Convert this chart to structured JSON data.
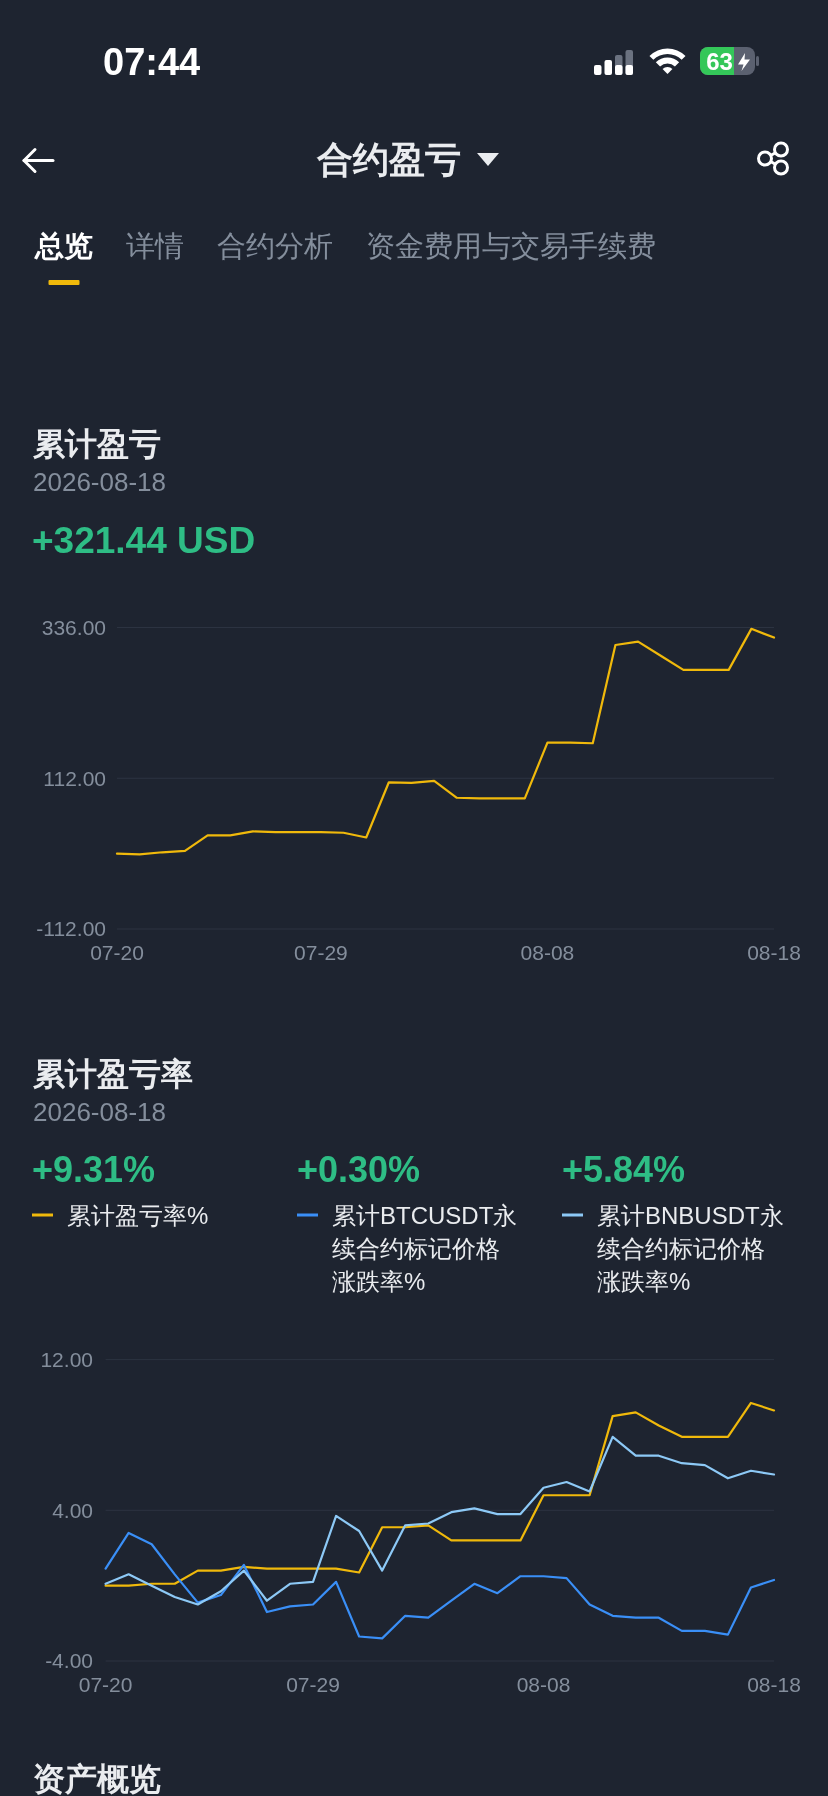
{
  "chart_data": [
    {
      "type": "other",
      "title": "合约盈亏",
      "annotations": [
        "07:44",
        "63",
        "总览",
        "详情",
        "合约分析",
        "资金费用与交易手续费"
      ]
    },
    {
      "type": "line",
      "title": "累计盈亏",
      "subtitle": "2026-08-18",
      "annotations": [
        "+321.44 USD"
      ],
      "x": [
        "2026-07-20",
        "2026-07-21",
        "2026-07-22",
        "2026-07-23",
        "2026-07-24",
        "2026-07-25",
        "2026-07-26",
        "2026-07-27",
        "2026-07-28",
        "2026-07-29",
        "2026-07-30",
        "2026-07-31",
        "2026-08-01",
        "2026-08-02",
        "2026-08-03",
        "2026-08-04",
        "2026-08-05",
        "2026-08-06",
        "2026-08-07",
        "2026-08-08",
        "2026-08-09",
        "2026-08-10",
        "2026-08-11",
        "2026-08-12",
        "2026-08-13",
        "2026-08-14",
        "2026-08-15",
        "2026-08-16",
        "2026-08-17",
        "2026-08-18"
      ],
      "xlim": [
        "2026-07-20",
        "2026-08-18"
      ],
      "xticks": [
        {
          "value": "2026-07-20",
          "label": "07-20"
        },
        {
          "value": "2026-07-29",
          "label": "07-29"
        },
        {
          "value": "2026-08-08",
          "label": "08-08"
        },
        {
          "value": "2026-08-18",
          "label": "08-18"
        }
      ],
      "ylim": [
        -112,
        336
      ],
      "yticks": [
        {
          "value": -112,
          "label": "-112.00"
        },
        {
          "value": 112,
          "label": "112.00"
        },
        {
          "value": 336,
          "label": "336.00"
        }
      ],
      "grid": "y",
      "series": [
        {
          "color": "#f0b90b",
          "values": [
            0,
            -1,
            2,
            4,
            27,
            27,
            33,
            32,
            32,
            32,
            31,
            24,
            106,
            105,
            108,
            83,
            82,
            82,
            82,
            165,
            165,
            164,
            310,
            315,
            294,
            273,
            273,
            273,
            334,
            321
          ]
        }
      ]
    },
    {
      "type": "line",
      "title": "累计盈亏率",
      "subtitle": "2026-08-18",
      "annotations": [
        "+9.31%",
        "+0.30%",
        "+5.84%"
      ],
      "legend": "top",
      "x": [
        "2026-07-20",
        "2026-07-21",
        "2026-07-22",
        "2026-07-23",
        "2026-07-24",
        "2026-07-25",
        "2026-07-26",
        "2026-07-27",
        "2026-07-28",
        "2026-07-29",
        "2026-07-30",
        "2026-07-31",
        "2026-08-01",
        "2026-08-02",
        "2026-08-03",
        "2026-08-04",
        "2026-08-05",
        "2026-08-06",
        "2026-08-07",
        "2026-08-08",
        "2026-08-09",
        "2026-08-10",
        "2026-08-11",
        "2026-08-12",
        "2026-08-13",
        "2026-08-14",
        "2026-08-15",
        "2026-08-16",
        "2026-08-17",
        "2026-08-18"
      ],
      "xlim": [
        "2026-07-20",
        "2026-08-18"
      ],
      "xticks": [
        {
          "value": "2026-07-20",
          "label": "07-20"
        },
        {
          "value": "2026-07-29",
          "label": "07-29"
        },
        {
          "value": "2026-08-08",
          "label": "08-08"
        },
        {
          "value": "2026-08-18",
          "label": "08-18"
        }
      ],
      "ylim": [
        -4,
        12
      ],
      "yticks": [
        {
          "value": -4,
          "label": "-4.00"
        },
        {
          "value": 4,
          "label": "4.00"
        },
        {
          "value": 12,
          "label": "12.00"
        }
      ],
      "grid": "y",
      "series": [
        {
          "name": "累计盈亏率%",
          "color": "#f0b90b",
          "values": [
            0.0,
            0.0,
            0.1,
            0.1,
            0.8,
            0.8,
            1.0,
            0.9,
            0.9,
            0.9,
            0.9,
            0.7,
            3.1,
            3.1,
            3.2,
            2.4,
            2.4,
            2.4,
            2.4,
            4.8,
            4.8,
            4.8,
            9.0,
            9.2,
            8.5,
            7.9,
            7.9,
            7.9,
            9.7,
            9.3
          ]
        },
        {
          "name": "累计BTCUSDT永续合约标记价格涨跌率%",
          "color": "#3a8ff7",
          "values": [
            0.9,
            2.8,
            2.2,
            0.6,
            -0.9,
            -0.5,
            1.1,
            -1.4,
            -1.1,
            -1.0,
            0.2,
            -2.7,
            -2.8,
            -1.6,
            -1.7,
            -0.8,
            0.1,
            -0.4,
            0.5,
            0.5,
            0.4,
            -1.0,
            -1.6,
            -1.7,
            -1.7,
            -2.4,
            -2.4,
            -2.6,
            -0.1,
            0.3
          ]
        },
        {
          "name": "累计BNBUSDT永续合约标记价格涨跌率%",
          "color": "#8dc9f6",
          "values": [
            0.1,
            0.6,
            0.0,
            -0.6,
            -1.0,
            -0.3,
            0.8,
            -0.8,
            0.1,
            0.2,
            3.7,
            2.9,
            0.8,
            3.2,
            3.3,
            3.9,
            4.1,
            3.8,
            3.8,
            5.2,
            5.5,
            5.0,
            7.9,
            6.9,
            6.9,
            6.5,
            6.4,
            5.7,
            6.1,
            5.9
          ]
        }
      ]
    },
    {
      "type": "other",
      "title": "资产概览"
    }
  ]
}
